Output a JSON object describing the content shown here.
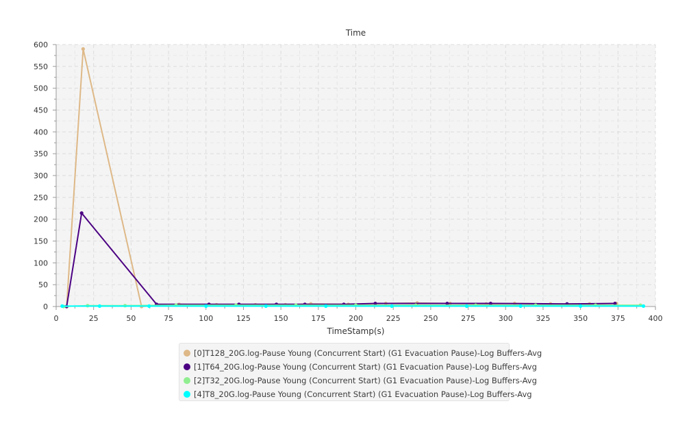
{
  "chart_data": {
    "type": "line",
    "title": "Time",
    "xlabel": "TimeStamp(s)",
    "ylabel": "",
    "xlim": [
      0,
      400
    ],
    "ylim": [
      0,
      600
    ],
    "x_ticks": [
      0,
      25,
      50,
      75,
      100,
      125,
      150,
      175,
      200,
      225,
      250,
      275,
      300,
      325,
      350,
      375,
      400
    ],
    "y_ticks": [
      0,
      50,
      100,
      150,
      200,
      250,
      300,
      350,
      400,
      450,
      500,
      550,
      600
    ],
    "grid": true,
    "legend_position": "bottom",
    "series": [
      {
        "name": "[0]T128_20G.log-Pause Young (Concurrent Start) (G1 Evacuation Pause)-Log Buffers-Avg",
        "color": "#deb887",
        "points": [
          [
            7,
            0
          ],
          [
            18,
            590
          ],
          [
            57,
            0
          ],
          [
            82,
            5
          ],
          [
            107,
            4
          ],
          [
            133,
            4
          ],
          [
            153,
            4
          ],
          [
            170,
            6
          ],
          [
            195,
            5
          ],
          [
            220,
            7
          ],
          [
            241,
            8
          ],
          [
            263,
            7
          ],
          [
            287,
            6
          ],
          [
            306,
            7
          ],
          [
            330,
            6
          ],
          [
            356,
            6
          ],
          [
            374,
            7
          ]
        ]
      },
      {
        "name": "[1]T64_20G.log-Pause Young (Concurrent Start) (G1 Evacuation Pause)-Log Buffers-Avg",
        "color": "#4b0082",
        "points": [
          [
            7,
            0
          ],
          [
            17,
            214
          ],
          [
            67,
            5
          ],
          [
            102,
            5
          ],
          [
            122,
            5
          ],
          [
            147,
            5
          ],
          [
            166,
            5
          ],
          [
            192,
            5
          ],
          [
            213,
            7
          ],
          [
            261,
            7
          ],
          [
            290,
            7
          ],
          [
            341,
            6
          ],
          [
            373,
            7
          ]
        ]
      },
      {
        "name": "[2]T32_20G.log-Pause Young (Concurrent Start) (G1 Evacuation Pause)-Log Buffers-Avg",
        "color": "#90ee90",
        "points": [
          [
            5,
            0
          ],
          [
            21,
            2
          ],
          [
            46,
            2
          ],
          [
            80,
            3
          ],
          [
            120,
            3
          ],
          [
            160,
            3
          ],
          [
            200,
            3
          ],
          [
            240,
            3
          ],
          [
            280,
            3
          ],
          [
            320,
            3
          ],
          [
            360,
            3
          ],
          [
            390,
            3
          ]
        ]
      },
      {
        "name": "[4]T8_20G.log-Pause Young (Concurrent Start) (G1 Evacuation Pause)-Log Buffers-Avg",
        "color": "#00ffff",
        "points": [
          [
            4,
            1
          ],
          [
            29,
            1
          ],
          [
            62,
            1
          ],
          [
            100,
            1
          ],
          [
            140,
            1
          ],
          [
            180,
            1
          ],
          [
            224,
            1
          ],
          [
            274,
            1
          ],
          [
            310,
            1
          ],
          [
            350,
            1
          ],
          [
            392,
            1
          ]
        ]
      }
    ]
  }
}
